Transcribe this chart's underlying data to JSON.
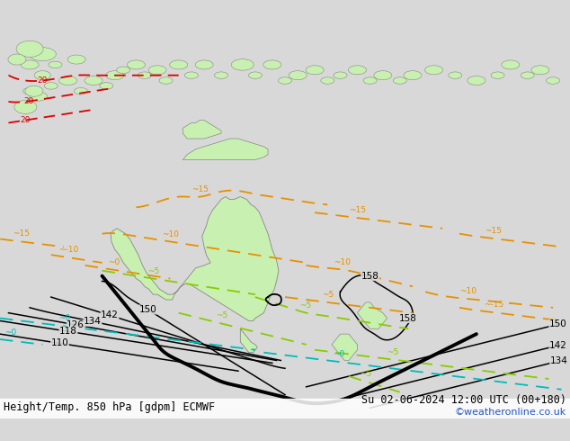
{
  "title_left": "Height/Temp. 850 hPa [gdpm] ECMWF",
  "title_right": "Su 02-06-2024 12:00 UTC (00+180)",
  "credit": "©weatheronline.co.uk",
  "bg_color": "#d8d8d8",
  "sea_color": "#d8d8d8",
  "land_color": "#c8f0b0",
  "coast_color": "#888888",
  "black": "#000000",
  "orange": "#e89000",
  "red": "#dd0000",
  "lime": "#88cc00",
  "cyan": "#00bbbb",
  "white": "#d8d8d8",
  "blue_credit": "#2255cc",
  "lw_thick": 2.8,
  "lw_thin": 1.1,
  "lw_temp": 1.3,
  "font_label": 7.5,
  "font_title": 8.5
}
